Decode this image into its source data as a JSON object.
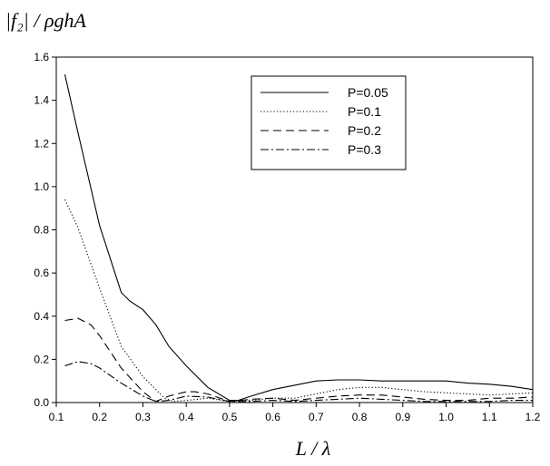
{
  "chart_data": {
    "type": "line",
    "ylabel": "|f₂| / ρghA",
    "xlabel": "L / λ",
    "xlim": [
      0.1,
      1.2
    ],
    "ylim": [
      0.0,
      1.6
    ],
    "xticks": [
      "0.1",
      "0.2",
      "0.3",
      "0.4",
      "0.5",
      "0.6",
      "0.7",
      "0.8",
      "0.9",
      "1.0",
      "1.1",
      "1.2"
    ],
    "yticks": [
      "0.0",
      "0.2",
      "0.4",
      "0.6",
      "0.8",
      "1.0",
      "1.2",
      "1.4",
      "1.6"
    ],
    "grid": false,
    "legend_position": "top-right",
    "series": [
      {
        "name": "P=0.05",
        "dash": "solid",
        "x": [
          0.12,
          0.15,
          0.2,
          0.25,
          0.27,
          0.3,
          0.33,
          0.36,
          0.4,
          0.45,
          0.5,
          0.52,
          0.55,
          0.6,
          0.65,
          0.7,
          0.75,
          0.8,
          0.85,
          0.9,
          0.95,
          1.0,
          1.05,
          1.1,
          1.15,
          1.2
        ],
        "y": [
          1.52,
          1.25,
          0.82,
          0.51,
          0.47,
          0.43,
          0.36,
          0.26,
          0.17,
          0.07,
          0.01,
          0.01,
          0.03,
          0.06,
          0.08,
          0.1,
          0.105,
          0.105,
          0.1,
          0.1,
          0.1,
          0.1,
          0.09,
          0.085,
          0.075,
          0.06
        ]
      },
      {
        "name": "P=0.1",
        "dash": "dotted",
        "x": [
          0.12,
          0.15,
          0.2,
          0.25,
          0.3,
          0.33,
          0.35,
          0.37,
          0.4,
          0.45,
          0.5,
          0.55,
          0.6,
          0.65,
          0.7,
          0.75,
          0.8,
          0.85,
          0.9,
          0.95,
          1.0,
          1.05,
          1.1,
          1.15,
          1.2
        ],
        "y": [
          0.94,
          0.81,
          0.53,
          0.26,
          0.12,
          0.06,
          0.02,
          0.005,
          0.01,
          0.02,
          0.005,
          0.01,
          0.02,
          0.02,
          0.04,
          0.06,
          0.07,
          0.07,
          0.06,
          0.05,
          0.045,
          0.04,
          0.035,
          0.04,
          0.045
        ]
      },
      {
        "name": "P=0.2",
        "dash": "dashed",
        "x": [
          0.12,
          0.15,
          0.18,
          0.2,
          0.25,
          0.3,
          0.33,
          0.36,
          0.4,
          0.42,
          0.45,
          0.5,
          0.55,
          0.6,
          0.65,
          0.7,
          0.75,
          0.8,
          0.85,
          0.9,
          0.95,
          1.0,
          1.05,
          1.1,
          1.15,
          1.2
        ],
        "y": [
          0.38,
          0.39,
          0.36,
          0.31,
          0.16,
          0.05,
          0.005,
          0.03,
          0.05,
          0.05,
          0.04,
          0.005,
          0.015,
          0.02,
          0.01,
          0.02,
          0.03,
          0.035,
          0.035,
          0.025,
          0.015,
          0.01,
          0.01,
          0.02,
          0.02,
          0.025
        ]
      },
      {
        "name": "P=0.3",
        "dash": "dash-dot",
        "x": [
          0.12,
          0.15,
          0.18,
          0.2,
          0.25,
          0.3,
          0.33,
          0.36,
          0.4,
          0.45,
          0.5,
          0.55,
          0.6,
          0.65,
          0.7,
          0.75,
          0.8,
          0.85,
          0.9,
          0.95,
          1.0,
          1.05,
          1.1,
          1.15,
          1.2
        ],
        "y": [
          0.17,
          0.19,
          0.18,
          0.16,
          0.09,
          0.03,
          0.005,
          0.01,
          0.03,
          0.025,
          0.005,
          0.005,
          0.01,
          0.005,
          0.01,
          0.015,
          0.02,
          0.015,
          0.01,
          0.005,
          0.005,
          0.005,
          0.005,
          0.01,
          0.01
        ]
      }
    ]
  }
}
